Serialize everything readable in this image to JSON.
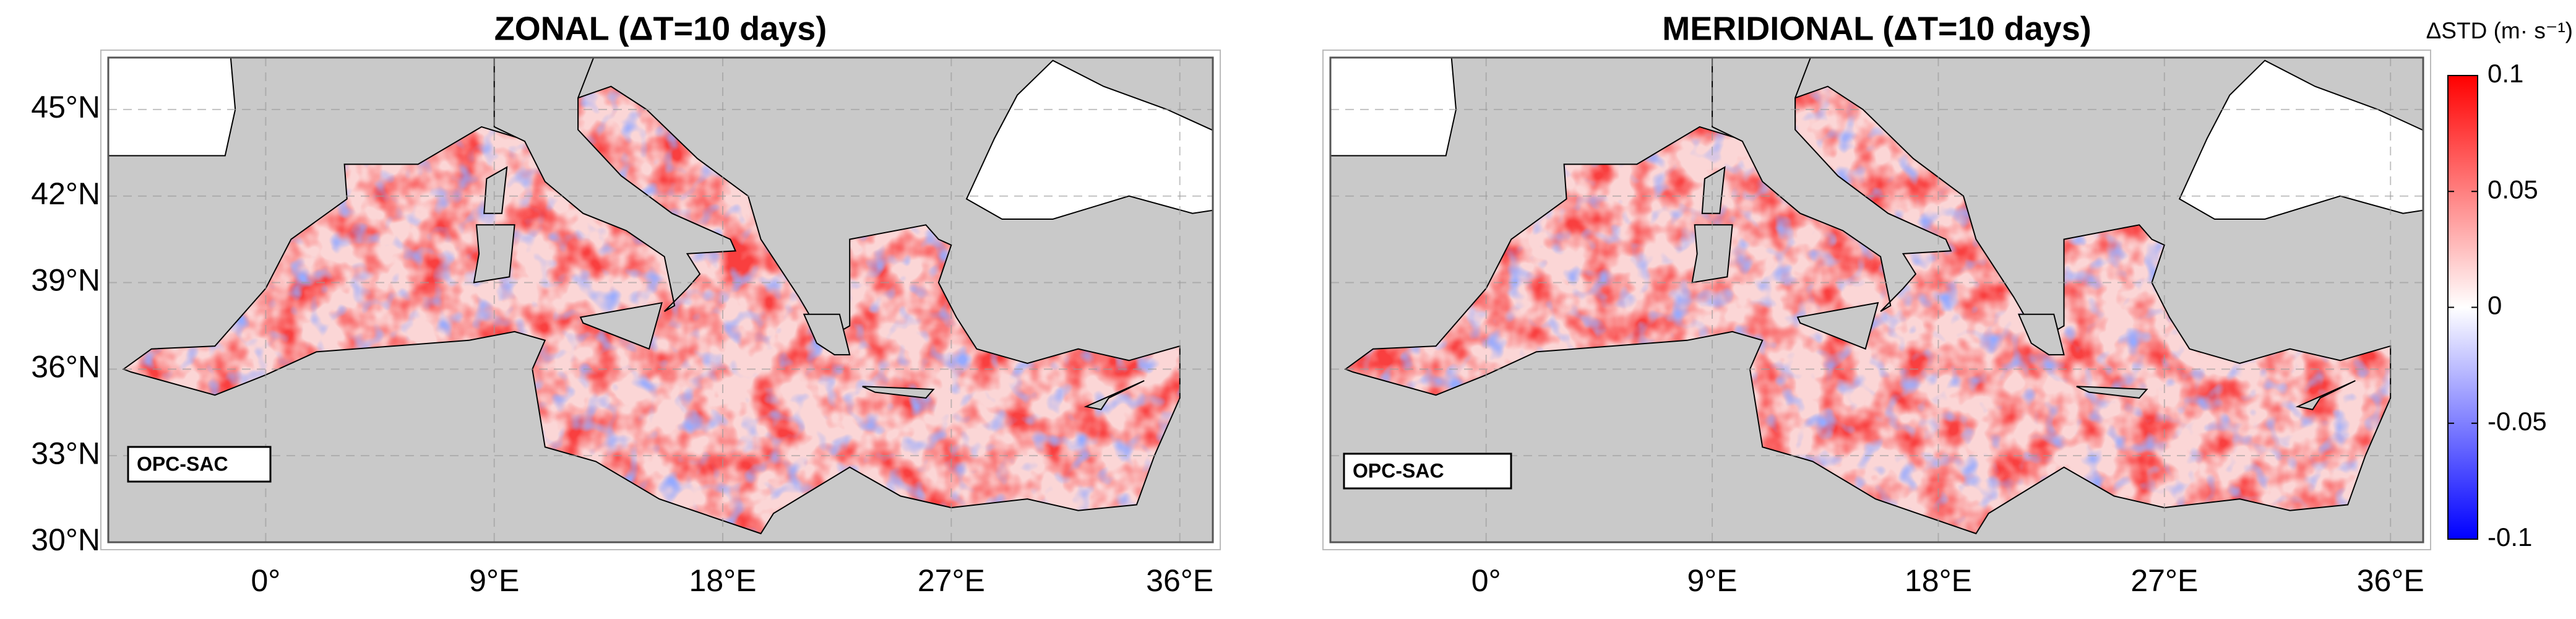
{
  "axes": {
    "xlim": [
      -6.2,
      37.3
    ],
    "ylim": [
      30,
      46.8
    ],
    "xticks": [
      {
        "value": 0,
        "label": "0°"
      },
      {
        "value": 9,
        "label": "9°E"
      },
      {
        "value": 18,
        "label": "18°E"
      },
      {
        "value": 27,
        "label": "27°E"
      },
      {
        "value": 36,
        "label": "36°E"
      }
    ],
    "yticks": [
      {
        "value": 45,
        "label": "45°N"
      },
      {
        "value": 42,
        "label": "42°N"
      },
      {
        "value": 39,
        "label": "39°N"
      },
      {
        "value": 36,
        "label": "36°N"
      },
      {
        "value": 33,
        "label": "33°N"
      },
      {
        "value": 30,
        "label": "30°N"
      }
    ]
  },
  "panels": [
    {
      "title": "ZONAL (ΔT=10 days)",
      "badge": "OPC-SAC"
    },
    {
      "title": "MERIDIONAL (ΔT=10 days)",
      "badge": "OPC-SAC"
    }
  ],
  "colorbar": {
    "label": "ΔSTD (m· s⁻¹)",
    "lim": [
      -0.1,
      0.1
    ],
    "ticks": [
      0.1,
      0.05,
      0,
      -0.05,
      -0.1
    ],
    "colors": [
      "#0000ff",
      "#ffffff",
      "#ff0000"
    ]
  }
}
